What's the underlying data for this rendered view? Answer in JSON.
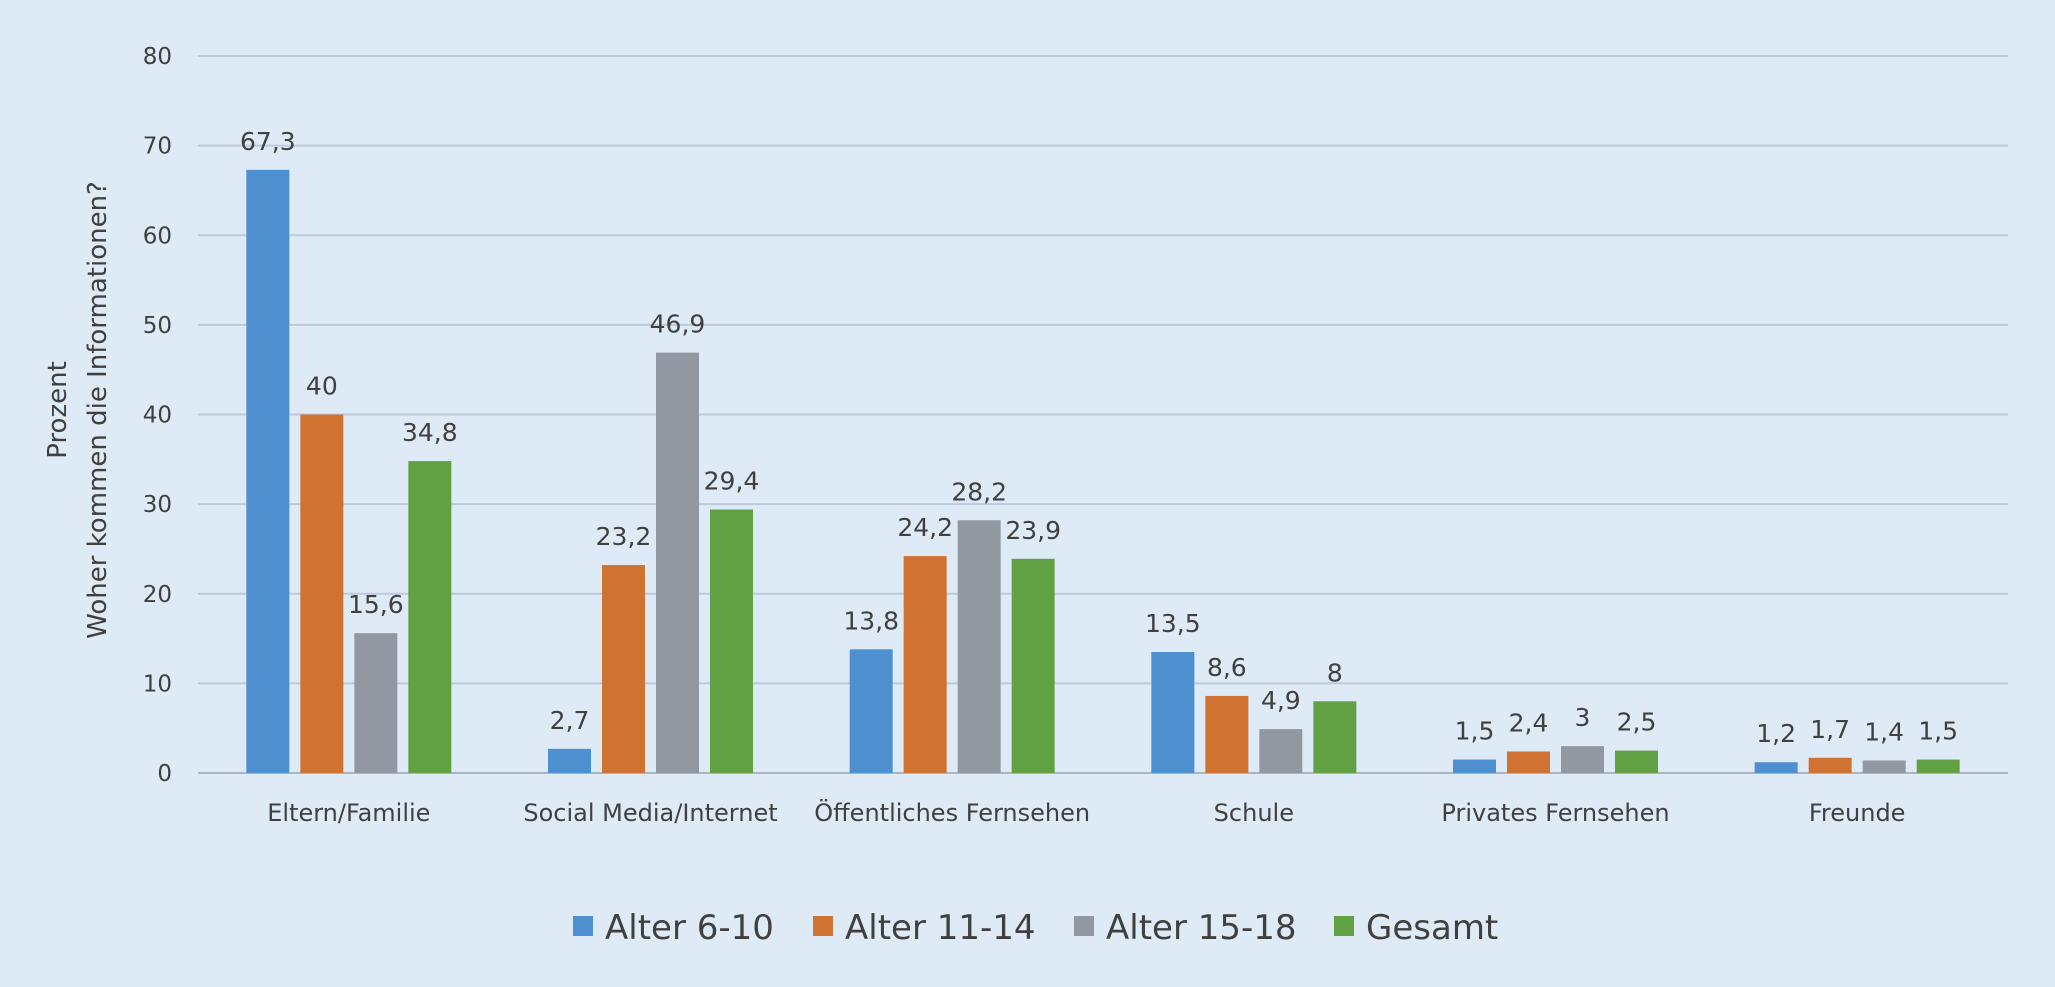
{
  "chart_data": {
    "type": "bar",
    "title": "",
    "xlabel": "",
    "ylabel_lines": [
      "Prozent",
      "Woher kommen die Informationen?"
    ],
    "ylim": [
      0,
      80
    ],
    "yticks": [
      0,
      10,
      20,
      30,
      40,
      50,
      60,
      70,
      80
    ],
    "grid": true,
    "legend_position": "bottom",
    "categories": [
      "Eltern/Familie",
      "Social Media/Internet",
      "Öffentliches Fernsehen",
      "Schule",
      "Privates Fernsehen",
      "Freunde"
    ],
    "series": [
      {
        "name": "Alter 6-10",
        "color": "#4e8fd0",
        "values": [
          67.3,
          2.7,
          13.8,
          13.5,
          1.5,
          1.2
        ],
        "labels": [
          "67,3",
          "2,7",
          "13,8",
          "13,5",
          "1,5",
          "1,2"
        ]
      },
      {
        "name": "Alter 11-14",
        "color": "#d07232",
        "values": [
          40,
          23.2,
          24.2,
          8.6,
          2.4,
          1.7
        ],
        "labels": [
          "40",
          "23,2",
          "24,2",
          "8,6",
          "2,4",
          "1,7"
        ]
      },
      {
        "name": "Alter 15-18",
        "color": "#9198a1",
        "values": [
          15.6,
          46.9,
          28.2,
          4.9,
          3,
          1.4
        ],
        "labels": [
          "15,6",
          "46,9",
          "28,2",
          "4,9",
          "3",
          "1,4"
        ]
      },
      {
        "name": "Gesamt",
        "color": "#62a143",
        "values": [
          34.8,
          29.4,
          23.9,
          8,
          2.5,
          1.5
        ],
        "labels": [
          "34,8",
          "29,4",
          "23,9",
          "8",
          "2,5",
          "1,5"
        ]
      }
    ]
  }
}
